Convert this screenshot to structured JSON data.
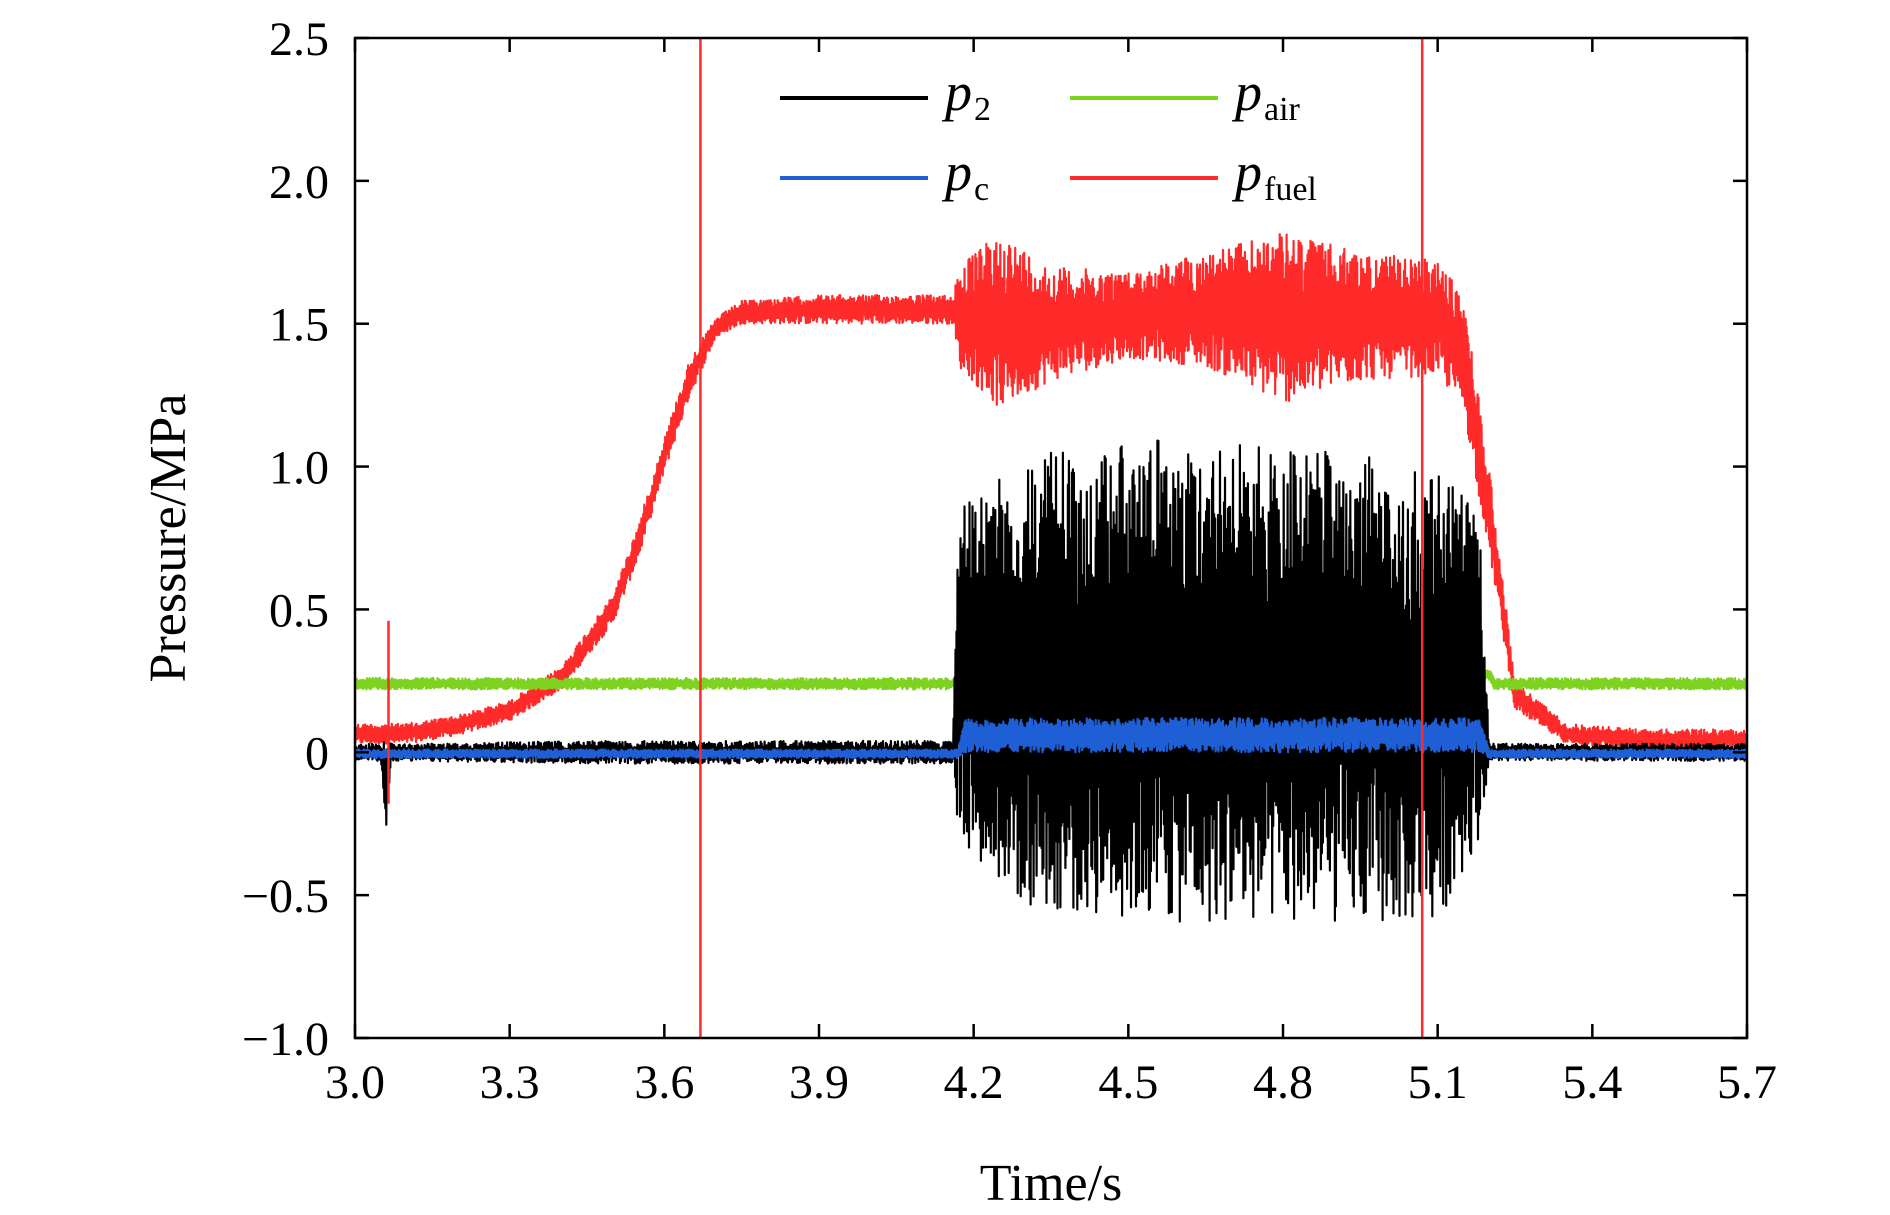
{
  "chart_data": {
    "type": "line",
    "xlabel": "Time/s",
    "ylabel": "Pressure/MPa",
    "xlim": [
      3.0,
      5.7
    ],
    "ylim": [
      -1.0,
      2.5
    ],
    "x_ticks": [
      3.0,
      3.3,
      3.6,
      3.9,
      4.2,
      4.5,
      4.8,
      5.1,
      5.4,
      5.7
    ],
    "x_tick_labels": [
      "3.0",
      "3.3",
      "3.6",
      "3.9",
      "4.2",
      "4.5",
      "4.8",
      "5.1",
      "5.4",
      "5.7"
    ],
    "y_ticks": [
      -1.0,
      -0.5,
      0,
      0.5,
      1.0,
      1.5,
      2.0,
      2.5
    ],
    "y_tick_labels": [
      "−1.0",
      "−0.5",
      "0",
      "0.5",
      "1.0",
      "1.5",
      "2.0",
      "2.5"
    ],
    "grid": false,
    "legend_position": "top-center",
    "vertical_markers": [
      {
        "x": 3.67,
        "color": "#ff2a2a"
      },
      {
        "x": 5.07,
        "color": "#ff2a2a"
      }
    ],
    "series": [
      {
        "name": "p2",
        "label_main": "p",
        "label_sub": "2",
        "color": "#000000",
        "style": "noisy-band",
        "x": [
          3.0,
          3.05,
          3.06,
          3.07,
          3.5,
          3.67,
          3.9,
          4.16,
          4.17,
          4.3,
          4.6,
          4.9,
          5.1,
          5.18,
          5.2,
          5.5,
          5.7
        ],
        "upper": [
          0.03,
          0.03,
          0.04,
          0.03,
          0.04,
          0.04,
          0.04,
          0.04,
          0.85,
          1.05,
          1.1,
          1.05,
          1.0,
          0.85,
          0.03,
          0.03,
          0.03
        ],
        "lower": [
          -0.03,
          -0.03,
          -0.28,
          -0.03,
          -0.04,
          -0.04,
          -0.04,
          -0.04,
          -0.3,
          -0.55,
          -0.6,
          -0.6,
          -0.6,
          -0.3,
          -0.03,
          -0.03,
          -0.03
        ]
      },
      {
        "name": "pair",
        "label_main": "p",
        "label_sub": "air",
        "color": "#7ed321",
        "style": "noisy-band",
        "x": [
          3.0,
          4.17,
          4.18,
          5.2,
          5.21,
          5.7
        ],
        "upper": [
          0.26,
          0.26,
          0.29,
          0.29,
          0.26,
          0.26
        ],
        "lower": [
          0.22,
          0.22,
          0.25,
          0.25,
          0.22,
          0.22
        ]
      },
      {
        "name": "pc",
        "label_main": "p",
        "label_sub": "c",
        "color": "#1f5fd6",
        "style": "noisy-band",
        "x": [
          3.0,
          4.17,
          4.18,
          5.18,
          5.2,
          5.7
        ],
        "upper": [
          0.01,
          0.01,
          0.12,
          0.12,
          0.01,
          0.01
        ],
        "lower": [
          -0.02,
          -0.02,
          0.0,
          0.0,
          -0.02,
          -0.02
        ]
      },
      {
        "name": "pfuel",
        "label_main": "p",
        "label_sub": "fuel",
        "color": "#ff2a2a",
        "style": "noisy-band",
        "x": [
          3.0,
          3.1,
          3.2,
          3.3,
          3.4,
          3.5,
          3.55,
          3.6,
          3.65,
          3.7,
          3.75,
          3.9,
          4.16,
          4.17,
          4.25,
          4.35,
          4.5,
          4.65,
          4.8,
          4.95,
          5.1,
          5.15,
          5.2,
          5.25,
          5.35,
          5.5,
          5.7
        ],
        "upper": [
          0.1,
          0.1,
          0.13,
          0.18,
          0.3,
          0.55,
          0.8,
          1.1,
          1.38,
          1.52,
          1.58,
          1.6,
          1.6,
          1.7,
          1.82,
          1.7,
          1.68,
          1.75,
          1.82,
          1.75,
          1.72,
          1.6,
          1.0,
          0.25,
          0.1,
          0.08,
          0.08
        ],
        "lower": [
          0.03,
          0.03,
          0.06,
          0.11,
          0.22,
          0.45,
          0.68,
          0.98,
          1.25,
          1.45,
          1.5,
          1.5,
          1.5,
          1.35,
          1.2,
          1.3,
          1.38,
          1.35,
          1.22,
          1.3,
          1.32,
          1.2,
          0.7,
          0.15,
          0.03,
          0.01,
          0.01
        ]
      }
    ],
    "spikes": [
      {
        "series": "pfuel",
        "x": 3.065,
        "y_min": -0.18,
        "y_max": 0.46
      }
    ]
  }
}
